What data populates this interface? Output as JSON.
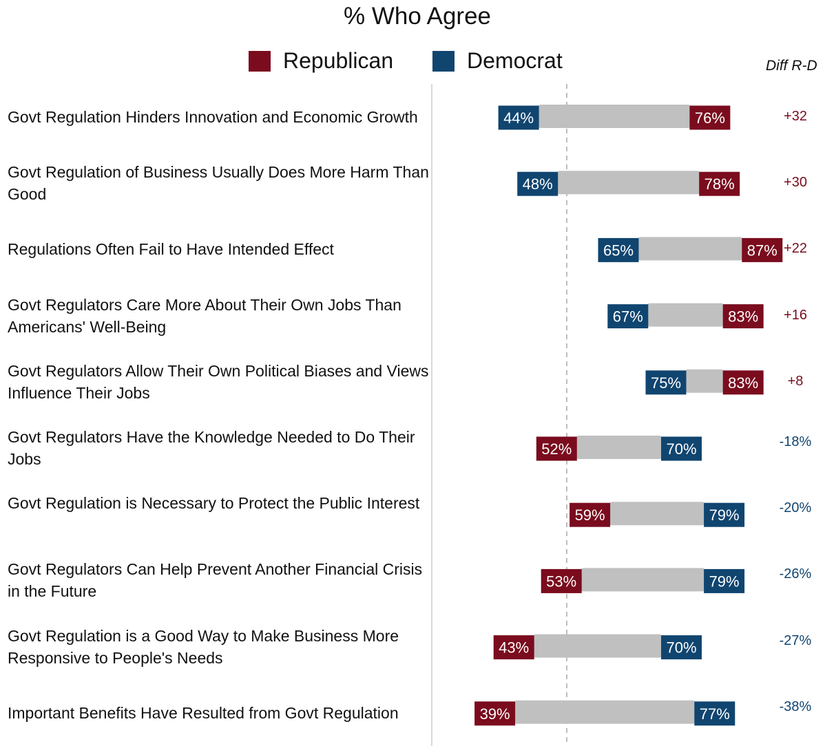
{
  "title": "% Who Agree",
  "legend": {
    "republican": "Republican",
    "democrat": "Democrat"
  },
  "diff_header": "Diff R-D",
  "colors": {
    "republican": "#7a0c1e",
    "democrat": "#104570",
    "connector": "#c0c0c0"
  },
  "chart_data": {
    "type": "dumbbell",
    "series": [
      {
        "name": "Republican",
        "values": [
          76,
          78,
          87,
          83,
          83,
          52,
          59,
          53,
          43,
          39
        ]
      },
      {
        "name": "Democrat",
        "values": [
          44,
          48,
          65,
          67,
          75,
          70,
          79,
          79,
          70,
          77
        ]
      }
    ],
    "categories": [
      "Govt Regulation Hinders Innovation and Economic Growth",
      "Govt Regulation of Business Usually Does More Harm Than Good",
      "Regulations Often Fail to Have Intended Effect",
      "Govt Regulators Care More About Their Own Jobs Than Americans' Well-Being",
      "Govt Regulators Allow Their Own Political Biases and Views Influence Their Jobs",
      "Govt Regulators Have the Knowledge Needed to Do Their Jobs",
      "Govt Regulation is Necessary to Protect the Public Interest",
      "Govt Regulators Can Help Prevent Another Financial Crisis in the Future",
      "Govt Regulation is a Good Way to Make Business More Responsive to People's Needs",
      "Important Benefits Have Resulted from Govt Regulation"
    ],
    "data_labels": {
      "republican": [
        "76%",
        "78%",
        "87%",
        "83%",
        "83%",
        "52%",
        "59%",
        "53%",
        "43%",
        "39%"
      ],
      "democrat": [
        "44%",
        "48%",
        "65%",
        "67%",
        "75%",
        "70%",
        "79%",
        "79%",
        "70%",
        "77%"
      ]
    },
    "diffs": [
      "+32",
      "+30",
      "+22",
      "+16",
      "+8",
      "-18%",
      "-20%",
      "-26%",
      "-27%",
      "-38%"
    ],
    "reference_line": 50
  }
}
